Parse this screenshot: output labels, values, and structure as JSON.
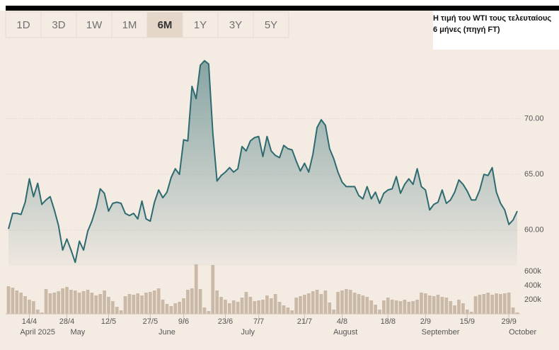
{
  "range_buttons": {
    "options": [
      "1D",
      "3D",
      "1W",
      "1M",
      "6M",
      "1Y",
      "3Y",
      "5Y"
    ],
    "selected_index": 4
  },
  "chart_data": {
    "type": "line",
    "title": "Η τιμή του WTI τους τελευταίους 6 μήνες (πηγή FT)",
    "categories": [
      null,
      null,
      null,
      null,
      null,
      "14/4",
      null,
      null,
      null,
      null,
      null,
      null,
      null,
      null,
      "28/4",
      null,
      null,
      null,
      null,
      null,
      null,
      null,
      null,
      null,
      "12/5",
      null,
      null,
      null,
      null,
      null,
      null,
      null,
      null,
      null,
      "27/5",
      null,
      null,
      null,
      null,
      null,
      null,
      null,
      "9/6",
      null,
      null,
      null,
      null,
      null,
      null,
      null,
      null,
      null,
      "23/6",
      null,
      null,
      null,
      null,
      null,
      null,
      null,
      "7/7",
      null,
      null,
      null,
      null,
      null,
      null,
      null,
      null,
      null,
      null,
      "21/7",
      null,
      null,
      null,
      null,
      null,
      null,
      null,
      null,
      "4/8",
      null,
      null,
      null,
      null,
      null,
      null,
      null,
      null,
      null,
      null,
      "18/8",
      null,
      null,
      null,
      null,
      null,
      null,
      null,
      null,
      "2/9",
      null,
      null,
      null,
      null,
      null,
      null,
      null,
      null,
      null,
      "15/9",
      null,
      null,
      null,
      null,
      null,
      null,
      null,
      null,
      null,
      "29/9",
      null,
      null
    ],
    "month_labels": [
      {
        "value": 7,
        "label": "April 2025"
      },
      {
        "value": 16.6,
        "label": "May"
      },
      {
        "value": 38,
        "label": "June"
      },
      {
        "value": 57.4,
        "label": "July"
      },
      {
        "value": 80.8,
        "label": "August"
      },
      {
        "value": 103.6,
        "label": "September"
      },
      {
        "value": 123.3,
        "label": "October"
      }
    ],
    "series": [
      {
        "color": "#2d6b70",
        "values": [
          60.1,
          61.5,
          61.5,
          61.4,
          62.5,
          64.6,
          63.0,
          64.2,
          62.3,
          62.7,
          63.0,
          61.8,
          60.4,
          58.2,
          59.2,
          58.2,
          57.1,
          59.0,
          58.2,
          59.9,
          60.8,
          62.0,
          63.7,
          63.3,
          61.7,
          62.4,
          62.5,
          62.4,
          61.5,
          61.3,
          61.5,
          61.0,
          62.6,
          61.0,
          60.8,
          62.5,
          63.6,
          62.9,
          63.4,
          64.7,
          65.5,
          65.0,
          68.1,
          68.0,
          72.9,
          71.8,
          74.8,
          75.2,
          74.9,
          68.7,
          64.4,
          64.9,
          65.2,
          65.6,
          65.2,
          65.5,
          67.5,
          67.1,
          68.0,
          68.3,
          68.4,
          66.6,
          68.4,
          67.1,
          66.7,
          66.5,
          67.6,
          67.3,
          67.2,
          66.2,
          65.3,
          66.0,
          65.2,
          66.8,
          69.2,
          69.9,
          69.4,
          67.3,
          66.4,
          65.2,
          64.3,
          63.9,
          63.9,
          63.9,
          63.1,
          62.8,
          63.9,
          62.8,
          63.4,
          62.4,
          63.3,
          63.6,
          63.7,
          64.8,
          63.3,
          64.1,
          64.6,
          64.1,
          65.5,
          63.9,
          63.6,
          61.8,
          62.3,
          62.5,
          63.6,
          62.4,
          62.7,
          63.4,
          64.5,
          64.1,
          63.5,
          62.7,
          62.7,
          63.6,
          65.0,
          64.9,
          65.6,
          63.4,
          62.4,
          61.8,
          60.5,
          60.9,
          61.7
        ]
      }
    ],
    "ylim": [
      56.8,
      75.5
    ],
    "yticks": [
      {
        "value": 60,
        "label": "60.00"
      },
      {
        "value": 65,
        "label": "65.00"
      },
      {
        "value": 70,
        "label": "70.00"
      }
    ],
    "volume": {
      "color": "#cbb9a7",
      "values": [
        390,
        370,
        330,
        300,
        250,
        200,
        180,
        60,
        20,
        350,
        290,
        300,
        320,
        360,
        380,
        340,
        330,
        300,
        320,
        340,
        300,
        260,
        280,
        330,
        240,
        180,
        100,
        50,
        250,
        280,
        270,
        290,
        260,
        300,
        310,
        330,
        360,
        200,
        140,
        110,
        150,
        170,
        220,
        340,
        360,
        700,
        350,
        90,
        40,
        690,
        330,
        240,
        200,
        150,
        190,
        170,
        230,
        310,
        240,
        180,
        190,
        200,
        260,
        220,
        280,
        170,
        120,
        90,
        50,
        230,
        250,
        270,
        290,
        320,
        340,
        280,
        330,
        160,
        60,
        310,
        330,
        350,
        340,
        300,
        280,
        260,
        240,
        190,
        130,
        60,
        190,
        230,
        200,
        190,
        180,
        200,
        170,
        180,
        200,
        300,
        290,
        260,
        250,
        270,
        240,
        230,
        180,
        120,
        200,
        150,
        60,
        30,
        250,
        270,
        280,
        300,
        270,
        290,
        280,
        290,
        300,
        90,
        20
      ]
    },
    "y2lim": [
      0,
      700
    ],
    "y2ticks": [
      {
        "value": 200,
        "label": "200k"
      },
      {
        "value": 400,
        "label": "400k"
      },
      {
        "value": 600,
        "label": "600k"
      }
    ],
    "grid": true
  }
}
